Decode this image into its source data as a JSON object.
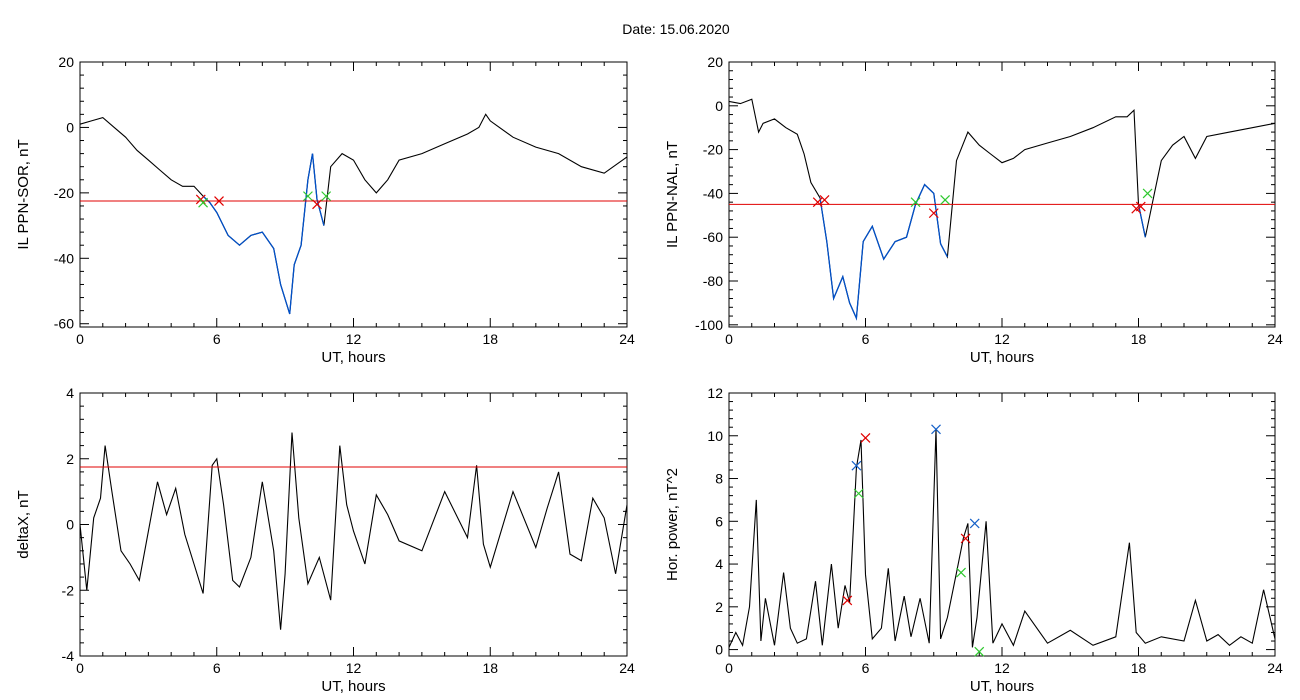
{
  "figure": {
    "title": "Date:  15.06.2020"
  },
  "colors": {
    "trace": "#000000",
    "highlight": "#0050c8",
    "threshold": "#e00000",
    "marker_red": "#e00000",
    "marker_green": "#2ec82e",
    "marker_blue": "#1560c8"
  },
  "chart_data": [
    {
      "id": "p1",
      "type": "line",
      "ylabel": "IL PPN-SOR, nT",
      "xlabel": "UT, hours",
      "xlim": [
        0,
        24
      ],
      "ylim": [
        -61,
        20
      ],
      "xticks": [
        "0",
        "6",
        "12",
        "18",
        "24"
      ],
      "yticks": [
        "20",
        "0",
        "-20",
        "-40",
        "-60"
      ],
      "ytick_values": [
        20,
        0,
        -20,
        -40,
        -60
      ],
      "threshold": -22.5,
      "series": [
        {
          "x": [
            0,
            0.5,
            1,
            1.5,
            2,
            2.5,
            3,
            3.5,
            4,
            4.5,
            5,
            5.4,
            5.7,
            6,
            6.5,
            7,
            7.5,
            8,
            8.5,
            8.8,
            9.2,
            9.4,
            9.7,
            10,
            10.2,
            10.4,
            10.7,
            11,
            11.5,
            12,
            12.5,
            13,
            13.5,
            14,
            15,
            16,
            17,
            17.5,
            17.8,
            18,
            19,
            20,
            21,
            22,
            23,
            24
          ],
          "y": [
            1,
            2,
            3,
            0,
            -3,
            -7,
            -10,
            -13,
            -16,
            -18,
            -18,
            -21,
            -23,
            -26,
            -33,
            -36,
            -33,
            -32,
            -37,
            -48,
            -57,
            -42,
            -36,
            -16,
            -8,
            -22,
            -30,
            -12,
            -8,
            -10,
            -16,
            -20,
            -16,
            -10,
            -8,
            -5,
            -2,
            0,
            4,
            2,
            -3,
            -6,
            -8,
            -12,
            -14,
            -9
          ]
        }
      ],
      "highlight_ranges": [
        [
          5.4,
          10.7
        ]
      ],
      "markers": [
        {
          "x": 5.3,
          "y": -22,
          "color": "red"
        },
        {
          "x": 5.4,
          "y": -23,
          "color": "green"
        },
        {
          "x": 6.1,
          "y": -22.5,
          "color": "red"
        },
        {
          "x": 10.0,
          "y": -21,
          "color": "green"
        },
        {
          "x": 10.4,
          "y": -23.5,
          "color": "red"
        },
        {
          "x": 10.8,
          "y": -21,
          "color": "green"
        }
      ]
    },
    {
      "id": "p2",
      "type": "line",
      "ylabel": "IL PPN-NAL, nT",
      "xlabel": "UT, hours",
      "xlim": [
        0,
        24
      ],
      "ylim": [
        -101,
        20
      ],
      "xticks": [
        "0",
        "6",
        "12",
        "18",
        "24"
      ],
      "yticks": [
        "20",
        "0",
        "-20",
        "-40",
        "-60",
        "-80",
        "-100"
      ],
      "ytick_values": [
        20,
        0,
        -20,
        -40,
        -60,
        -80,
        -100
      ],
      "threshold": -45,
      "series": [
        {
          "x": [
            0,
            0.5,
            1,
            1.3,
            1.5,
            2,
            2.5,
            3,
            3.3,
            3.6,
            4,
            4.3,
            4.6,
            5,
            5.3,
            5.6,
            5.9,
            6.3,
            6.8,
            7.3,
            7.8,
            8.2,
            8.6,
            9,
            9.3,
            9.6,
            10,
            10.5,
            11,
            11.5,
            12,
            12.5,
            13,
            14,
            15,
            16,
            17,
            17.5,
            17.8,
            18,
            18.3,
            18.7,
            19,
            19.5,
            20,
            20.5,
            21,
            22,
            23,
            24
          ],
          "y": [
            2,
            1,
            3,
            -12,
            -8,
            -6,
            -10,
            -13,
            -22,
            -35,
            -42,
            -62,
            -88,
            -78,
            -90,
            -97,
            -62,
            -55,
            -70,
            -62,
            -60,
            -45,
            -36,
            -40,
            -63,
            -69,
            -25,
            -12,
            -18,
            -22,
            -26,
            -24,
            -20,
            -17,
            -14,
            -10,
            -5,
            -5,
            -2,
            -45,
            -60,
            -40,
            -25,
            -18,
            -14,
            -24,
            -14,
            -12,
            -10,
            -8
          ]
        }
      ],
      "highlight_ranges": [
        [
          4.0,
          9.6
        ],
        [
          17.9,
          18.4
        ]
      ],
      "markers": [
        {
          "x": 3.9,
          "y": -44,
          "color": "red"
        },
        {
          "x": 4.2,
          "y": -43,
          "color": "red"
        },
        {
          "x": 8.2,
          "y": -44,
          "color": "green"
        },
        {
          "x": 9.0,
          "y": -49,
          "color": "red"
        },
        {
          "x": 9.5,
          "y": -43,
          "color": "green"
        },
        {
          "x": 17.9,
          "y": -47,
          "color": "red"
        },
        {
          "x": 18.1,
          "y": -46,
          "color": "red"
        },
        {
          "x": 18.4,
          "y": -40,
          "color": "green"
        }
      ]
    },
    {
      "id": "p3",
      "type": "line",
      "ylabel": "deltaX, nT",
      "xlabel": "UT, hours",
      "xlim": [
        0,
        24
      ],
      "ylim": [
        -4,
        4
      ],
      "xticks": [
        "0",
        "6",
        "12",
        "18",
        "24"
      ],
      "yticks": [
        "4",
        "2",
        "0",
        "-2",
        "-4"
      ],
      "ytick_values": [
        4,
        2,
        0,
        -2,
        -4
      ],
      "threshold": 1.75,
      "series": [
        {
          "x": [
            0,
            0.3,
            0.6,
            0.9,
            1.1,
            1.4,
            1.8,
            2.2,
            2.6,
            3,
            3.4,
            3.8,
            4.2,
            4.6,
            5,
            5.4,
            5.8,
            6,
            6.3,
            6.7,
            7,
            7.5,
            8,
            8.5,
            8.8,
            9,
            9.3,
            9.6,
            10,
            10.5,
            11,
            11.4,
            11.7,
            12,
            12.5,
            13,
            13.5,
            14,
            15,
            16,
            17,
            17.4,
            17.7,
            18,
            19,
            20,
            20.5,
            21,
            21.5,
            22,
            22.5,
            23,
            23.5,
            24
          ],
          "y": [
            0,
            -2,
            0.2,
            0.8,
            2.4,
            1.0,
            -0.8,
            -1.2,
            -1.7,
            -0.2,
            1.3,
            0.3,
            1.1,
            -0.3,
            -1.2,
            -2.1,
            1.8,
            2.0,
            0.6,
            -1.7,
            -1.9,
            -1.0,
            1.3,
            -0.8,
            -3.2,
            -1.5,
            2.8,
            0.2,
            -1.8,
            -1.0,
            -2.3,
            2.4,
            0.6,
            -0.2,
            -1.2,
            0.9,
            0.3,
            -0.5,
            -0.8,
            1.0,
            -0.4,
            1.8,
            -0.6,
            -1.3,
            1.0,
            -0.7,
            0.5,
            1.6,
            -0.9,
            -1.1,
            0.8,
            0.2,
            -1.5,
            0.6
          ]
        }
      ],
      "highlight_ranges": [],
      "markers": []
    },
    {
      "id": "p4",
      "type": "line",
      "ylabel": "Hor. power, nT^2",
      "xlabel": "UT, hours",
      "xlim": [
        0,
        24
      ],
      "ylim": [
        -0.3,
        12
      ],
      "xticks": [
        "0",
        "6",
        "12",
        "18",
        "24"
      ],
      "yticks": [
        "12",
        "10",
        "8",
        "6",
        "4",
        "2",
        "0"
      ],
      "ytick_values": [
        12,
        10,
        8,
        6,
        4,
        2,
        0
      ],
      "threshold": null,
      "series": [
        {
          "x": [
            0,
            0.3,
            0.6,
            0.9,
            1.2,
            1.4,
            1.6,
            2,
            2.4,
            2.7,
            3,
            3.4,
            3.8,
            4.1,
            4.5,
            4.8,
            5.1,
            5.3,
            5.6,
            5.8,
            6,
            6.3,
            6.7,
            7,
            7.3,
            7.7,
            8,
            8.4,
            8.8,
            9.1,
            9.3,
            9.6,
            10,
            10.3,
            10.5,
            10.7,
            10.9,
            11.3,
            11.6,
            12,
            12.5,
            13,
            14,
            15,
            16,
            17,
            17.6,
            17.9,
            18.3,
            19,
            20,
            20.5,
            21,
            21.5,
            22,
            22.5,
            23,
            23.5,
            24
          ],
          "y": [
            0.1,
            0.8,
            0.2,
            2.0,
            7.0,
            0.4,
            2.4,
            0.2,
            3.6,
            1.0,
            0.3,
            0.5,
            3.2,
            0.2,
            4.0,
            1.0,
            3.0,
            2.2,
            8.5,
            9.8,
            3.5,
            0.5,
            1.0,
            3.8,
            0.4,
            2.5,
            0.6,
            2.4,
            0.3,
            10.3,
            0.5,
            1.5,
            3.6,
            5.2,
            5.9,
            0.1,
            1.5,
            6.0,
            0.3,
            1.2,
            0.2,
            1.8,
            0.3,
            0.9,
            0.2,
            0.6,
            5.0,
            0.8,
            0.3,
            0.6,
            0.4,
            2.3,
            0.4,
            0.7,
            0.2,
            0.6,
            0.3,
            2.8,
            0.5
          ]
        }
      ],
      "highlight_ranges": [],
      "markers": [
        {
          "x": 5.2,
          "y": 2.3,
          "color": "red"
        },
        {
          "x": 5.6,
          "y": 8.6,
          "color": "blue"
        },
        {
          "x": 5.7,
          "y": 7.3,
          "color": "green"
        },
        {
          "x": 6.0,
          "y": 9.9,
          "color": "red"
        },
        {
          "x": 9.1,
          "y": 10.3,
          "color": "blue"
        },
        {
          "x": 10.2,
          "y": 3.6,
          "color": "green"
        },
        {
          "x": 10.4,
          "y": 5.2,
          "color": "red"
        },
        {
          "x": 10.8,
          "y": 5.9,
          "color": "blue"
        },
        {
          "x": 11.0,
          "y": -0.1,
          "color": "green"
        }
      ]
    }
  ]
}
